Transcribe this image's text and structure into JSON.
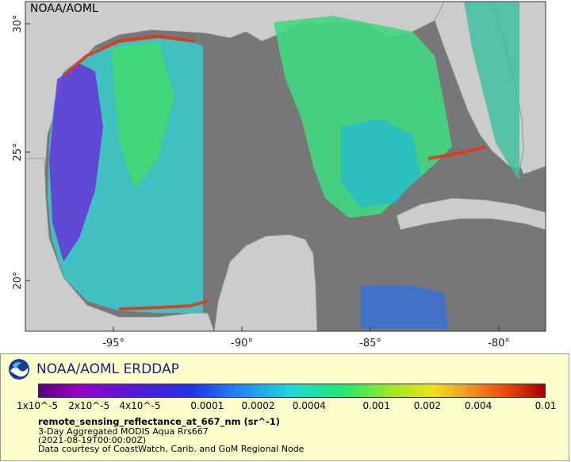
{
  "map": {
    "attribution": "NOAA/AOML",
    "y_ticks": [
      {
        "label": "30°",
        "lat": 30
      },
      {
        "label": "25°",
        "lat": 25
      },
      {
        "label": "20°",
        "lat": 20
      }
    ],
    "x_ticks": [
      {
        "label": "-95°",
        "lon": -95
      },
      {
        "label": "-90°",
        "lon": -90
      },
      {
        "label": "-85°",
        "lon": -85
      },
      {
        "label": "-80°",
        "lon": -80
      }
    ],
    "colors": {
      "ocean": "#777777",
      "land": "#cccccc",
      "border": "#8a8a8a",
      "frame": "#333333"
    }
  },
  "legend": {
    "title": "NOAA/AOML ERDDAP",
    "ticks": [
      "1x10^-5",
      "2x10^-5",
      "4x10^-5",
      "0.0001",
      "0.0002",
      "0.0004",
      "0.001",
      "0.002",
      "0.004",
      "0.01"
    ],
    "variable": "remote_sensing_reflectance_at_667_nm (sr^-1)",
    "description": "3-Day Aggregated MODIS Aqua Rrs667",
    "time": "(2021-08-19T00:00:00Z)",
    "credit": "Data courtesy of CoastWatch, Carib. and GoM Regional Node",
    "logo": "noaa-logo",
    "colorscale": "log",
    "range": [
      1e-05,
      0.01
    ]
  }
}
